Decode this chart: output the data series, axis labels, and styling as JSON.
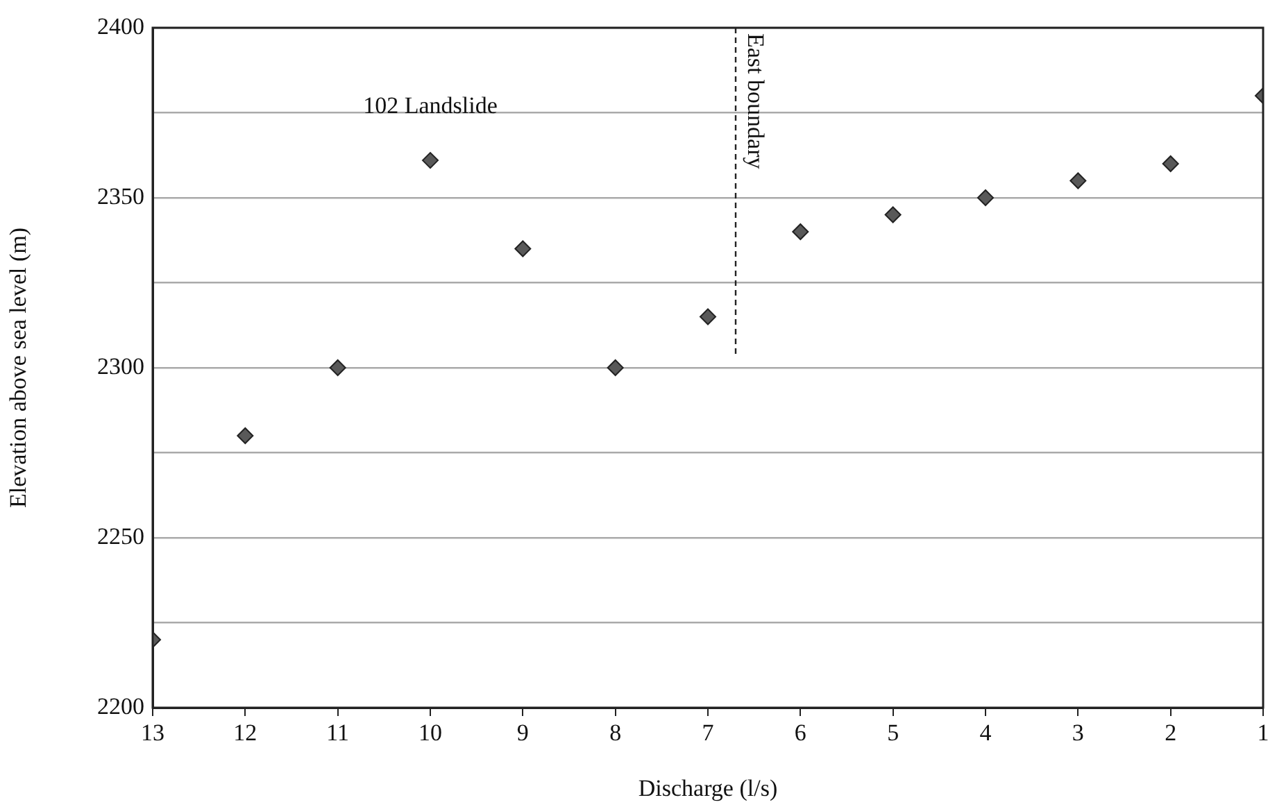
{
  "chart_data": {
    "type": "scatter",
    "xlabel": "Discharge (l/s)",
    "ylabel": "Elevation above sea level (m)",
    "x": [
      13,
      12,
      11,
      10,
      9,
      8,
      7,
      6,
      5,
      4,
      3,
      2,
      1
    ],
    "series": [
      {
        "color": "#595959",
        "values": [
          2220,
          2280,
          2300,
          2361,
          2335,
          2300,
          2315,
          2340,
          2345,
          2350,
          2355,
          2360,
          2380
        ]
      }
    ],
    "xlim": [
      13,
      1
    ],
    "xticks": [
      13,
      12,
      11,
      10,
      9,
      8,
      7,
      6,
      5,
      4,
      3,
      2,
      1
    ],
    "ylim": [
      2200,
      2400
    ],
    "yticks": [
      2200,
      {
        "value": 2225,
        "label": null
      },
      2250,
      {
        "value": 2275,
        "label": null
      },
      2300,
      {
        "value": 2325,
        "label": null
      },
      2350,
      {
        "value": 2375,
        "label": null
      },
      2400
    ],
    "grid": "y",
    "legend": false,
    "marker": "diamond",
    "ref_lines": [
      {
        "axis": "x",
        "value": 6.7,
        "label": "East boundary",
        "line_style": "dashed"
      }
    ],
    "annotations": [
      {
        "text": "102 Landslide",
        "x": 10,
        "y": 2361
      }
    ]
  }
}
